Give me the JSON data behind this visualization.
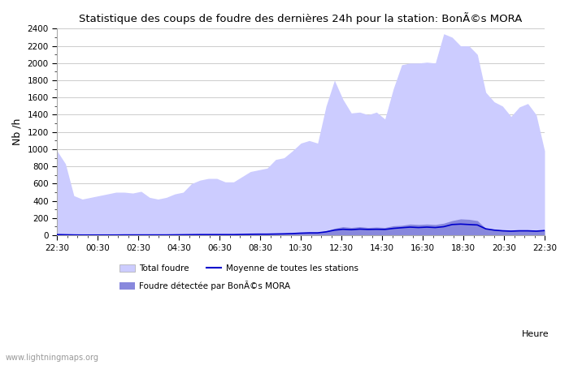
{
  "title": "Statistique des coups de foudre des dernières 24h pour la station: BonÃ©s MORA",
  "ylabel": "Nb /h",
  "xlabel_right": "Heure",
  "watermark": "www.lightningmaps.org",
  "x_labels": [
    "22:30",
    "00:30",
    "02:30",
    "04:30",
    "06:30",
    "08:30",
    "10:30",
    "12:30",
    "14:30",
    "16:30",
    "18:30",
    "20:30",
    "22:30"
  ],
  "ylim": [
    0,
    2400
  ],
  "yticks": [
    0,
    200,
    400,
    600,
    800,
    1000,
    1200,
    1400,
    1600,
    1800,
    2000,
    2200,
    2400
  ],
  "total_foudre_color": "#ccccff",
  "local_foudre_color": "#8888dd",
  "moyenne_color": "#0000cc",
  "background_color": "#ffffff",
  "grid_color": "#cccccc",
  "legend_total": "Total foudre",
  "legend_moyenne": "Moyenne de toutes les stations",
  "legend_local": "Foudre détectée par BonÃ©s MORA",
  "total_foudre": [
    980,
    830,
    460,
    420,
    440,
    460,
    480,
    500,
    500,
    490,
    510,
    440,
    420,
    440,
    480,
    500,
    600,
    640,
    660,
    660,
    620,
    620,
    680,
    740,
    760,
    780,
    880,
    900,
    980,
    1070,
    1100,
    1070,
    1500,
    1800,
    1580,
    1420,
    1430,
    1400,
    1430,
    1350,
    1700,
    1980,
    2000,
    2000,
    2010,
    2000,
    2340,
    2300,
    2200,
    2200,
    2100,
    1660,
    1550,
    1500,
    1380,
    1490,
    1530,
    1400,
    980
  ],
  "local_foudre": [
    10,
    8,
    5,
    3,
    3,
    3,
    3,
    3,
    4,
    4,
    5,
    4,
    5,
    4,
    5,
    6,
    8,
    10,
    10,
    10,
    10,
    10,
    12,
    14,
    15,
    15,
    18,
    20,
    25,
    30,
    35,
    35,
    50,
    80,
    100,
    90,
    100,
    90,
    95,
    90,
    110,
    115,
    130,
    125,
    130,
    125,
    140,
    170,
    190,
    185,
    170,
    80,
    70,
    60,
    55,
    60,
    60,
    55,
    65
  ],
  "moyenne": [
    8,
    6,
    4,
    3,
    3,
    3,
    3,
    3,
    4,
    4,
    4,
    4,
    4,
    4,
    5,
    6,
    7,
    8,
    8,
    8,
    8,
    8,
    10,
    12,
    13,
    13,
    15,
    17,
    20,
    25,
    28,
    28,
    40,
    60,
    70,
    65,
    72,
    68,
    70,
    68,
    80,
    88,
    95,
    90,
    95,
    90,
    100,
    125,
    130,
    125,
    120,
    75,
    60,
    52,
    48,
    52,
    52,
    48,
    55
  ]
}
